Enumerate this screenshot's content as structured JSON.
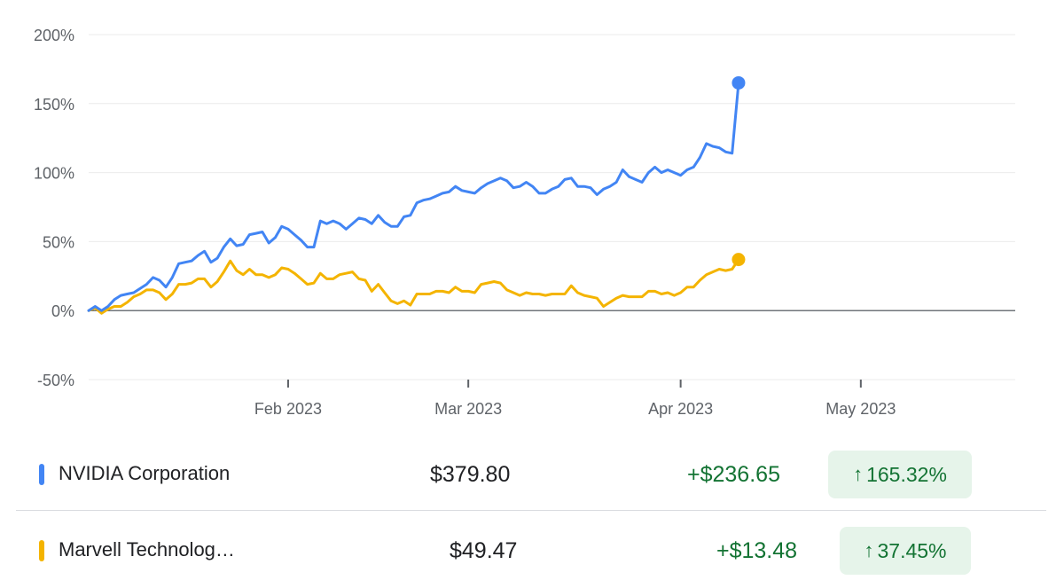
{
  "chart_data": {
    "type": "line",
    "x_start": "2023-01-01",
    "x_end": "2023-05-25",
    "y_ticks": [
      "200%",
      "150%",
      "100%",
      "50%",
      "0%",
      "-50%"
    ],
    "ylim": [
      -50,
      200
    ],
    "grid": true,
    "x_ticks": [
      {
        "label": "Feb 2023",
        "date": "2023-02-01"
      },
      {
        "label": "Mar 2023",
        "date": "2023-03-01"
      },
      {
        "label": "Apr 2023",
        "date": "2023-04-03"
      },
      {
        "label": "May 2023",
        "date": "2023-05-01"
      }
    ],
    "series": [
      {
        "name": "NVIDIA Corporation",
        "color": "#4285f4",
        "points": [
          [
            "2023-01-01",
            0
          ],
          [
            "2023-01-02",
            3
          ],
          [
            "2023-01-03",
            0
          ],
          [
            "2023-01-04",
            3
          ],
          [
            "2023-01-05",
            8
          ],
          [
            "2023-01-06",
            11
          ],
          [
            "2023-01-07",
            12
          ],
          [
            "2023-01-08",
            13
          ],
          [
            "2023-01-09",
            16
          ],
          [
            "2023-01-10",
            19
          ],
          [
            "2023-01-11",
            24
          ],
          [
            "2023-01-12",
            22
          ],
          [
            "2023-01-13",
            17
          ],
          [
            "2023-01-14",
            24
          ],
          [
            "2023-01-15",
            34
          ],
          [
            "2023-01-16",
            35
          ],
          [
            "2023-01-17",
            36
          ],
          [
            "2023-01-18",
            40
          ],
          [
            "2023-01-19",
            43
          ],
          [
            "2023-01-20",
            35
          ],
          [
            "2023-01-21",
            38
          ],
          [
            "2023-01-22",
            46
          ],
          [
            "2023-01-23",
            52
          ],
          [
            "2023-01-24",
            47
          ],
          [
            "2023-01-25",
            48
          ],
          [
            "2023-01-26",
            55
          ],
          [
            "2023-01-27",
            56
          ],
          [
            "2023-01-28",
            57
          ],
          [
            "2023-01-29",
            49
          ],
          [
            "2023-01-30",
            53
          ],
          [
            "2023-01-31",
            61
          ],
          [
            "2023-02-01",
            59
          ],
          [
            "2023-02-02",
            55
          ],
          [
            "2023-02-03",
            51
          ],
          [
            "2023-02-04",
            46
          ],
          [
            "2023-02-05",
            46
          ],
          [
            "2023-02-06",
            65
          ],
          [
            "2023-02-07",
            63
          ],
          [
            "2023-02-08",
            65
          ],
          [
            "2023-02-09",
            63
          ],
          [
            "2023-02-10",
            59
          ],
          [
            "2023-02-11",
            63
          ],
          [
            "2023-02-12",
            67
          ],
          [
            "2023-02-13",
            66
          ],
          [
            "2023-02-14",
            63
          ],
          [
            "2023-02-15",
            69
          ],
          [
            "2023-02-16",
            64
          ],
          [
            "2023-02-17",
            61
          ],
          [
            "2023-02-18",
            61
          ],
          [
            "2023-02-19",
            68
          ],
          [
            "2023-02-20",
            69
          ],
          [
            "2023-02-21",
            78
          ],
          [
            "2023-02-22",
            80
          ],
          [
            "2023-02-23",
            81
          ],
          [
            "2023-02-24",
            83
          ],
          [
            "2023-02-25",
            85
          ],
          [
            "2023-02-26",
            86
          ],
          [
            "2023-02-27",
            90
          ],
          [
            "2023-02-28",
            87
          ],
          [
            "2023-03-01",
            86
          ],
          [
            "2023-03-02",
            85
          ],
          [
            "2023-03-03",
            89
          ],
          [
            "2023-03-04",
            92
          ],
          [
            "2023-03-05",
            94
          ],
          [
            "2023-03-06",
            96
          ],
          [
            "2023-03-07",
            94
          ],
          [
            "2023-03-08",
            89
          ],
          [
            "2023-03-09",
            90
          ],
          [
            "2023-03-10",
            93
          ],
          [
            "2023-03-11",
            90
          ],
          [
            "2023-03-12",
            85
          ],
          [
            "2023-03-13",
            85
          ],
          [
            "2023-03-14",
            88
          ],
          [
            "2023-03-15",
            90
          ],
          [
            "2023-03-16",
            95
          ],
          [
            "2023-03-17",
            96
          ],
          [
            "2023-03-18",
            90
          ],
          [
            "2023-03-19",
            90
          ],
          [
            "2023-03-20",
            89
          ],
          [
            "2023-03-21",
            84
          ],
          [
            "2023-03-22",
            88
          ],
          [
            "2023-03-23",
            90
          ],
          [
            "2023-03-24",
            93
          ],
          [
            "2023-03-25",
            102
          ],
          [
            "2023-03-26",
            97
          ],
          [
            "2023-03-27",
            95
          ],
          [
            "2023-03-28",
            93
          ],
          [
            "2023-03-29",
            100
          ],
          [
            "2023-03-30",
            104
          ],
          [
            "2023-03-31",
            100
          ],
          [
            "2023-04-01",
            102
          ],
          [
            "2023-04-02",
            100
          ],
          [
            "2023-04-03",
            98
          ],
          [
            "2023-04-04",
            102
          ],
          [
            "2023-04-05",
            104
          ],
          [
            "2023-04-06",
            111
          ],
          [
            "2023-04-07",
            121
          ],
          [
            "2023-04-08",
            119
          ],
          [
            "2023-04-09",
            118
          ],
          [
            "2023-04-10",
            115
          ],
          [
            "2023-04-11",
            114
          ],
          [
            "2023-04-12",
            165
          ]
        ]
      },
      {
        "name": "Marvell Technology",
        "color": "#f4b400",
        "points": [
          [
            "2023-01-01",
            0
          ],
          [
            "2023-01-02",
            2
          ],
          [
            "2023-01-03",
            -2
          ],
          [
            "2023-01-04",
            1
          ],
          [
            "2023-01-05",
            3
          ],
          [
            "2023-01-06",
            3
          ],
          [
            "2023-01-07",
            6
          ],
          [
            "2023-01-08",
            10
          ],
          [
            "2023-01-09",
            12
          ],
          [
            "2023-01-10",
            15
          ],
          [
            "2023-01-11",
            15
          ],
          [
            "2023-01-12",
            13
          ],
          [
            "2023-01-13",
            8
          ],
          [
            "2023-01-14",
            12
          ],
          [
            "2023-01-15",
            19
          ],
          [
            "2023-01-16",
            19
          ],
          [
            "2023-01-17",
            20
          ],
          [
            "2023-01-18",
            23
          ],
          [
            "2023-01-19",
            23
          ],
          [
            "2023-01-20",
            17
          ],
          [
            "2023-01-21",
            21
          ],
          [
            "2023-01-22",
            28
          ],
          [
            "2023-01-23",
            36
          ],
          [
            "2023-01-24",
            29
          ],
          [
            "2023-01-25",
            26
          ],
          [
            "2023-01-26",
            30
          ],
          [
            "2023-01-27",
            26
          ],
          [
            "2023-01-28",
            26
          ],
          [
            "2023-01-29",
            24
          ],
          [
            "2023-01-30",
            26
          ],
          [
            "2023-01-31",
            31
          ],
          [
            "2023-02-01",
            30
          ],
          [
            "2023-02-02",
            27
          ],
          [
            "2023-02-03",
            23
          ],
          [
            "2023-02-04",
            19
          ],
          [
            "2023-02-05",
            20
          ],
          [
            "2023-02-06",
            27
          ],
          [
            "2023-02-07",
            23
          ],
          [
            "2023-02-08",
            23
          ],
          [
            "2023-02-09",
            26
          ],
          [
            "2023-02-10",
            27
          ],
          [
            "2023-02-11",
            28
          ],
          [
            "2023-02-12",
            23
          ],
          [
            "2023-02-13",
            22
          ],
          [
            "2023-02-14",
            14
          ],
          [
            "2023-02-15",
            19
          ],
          [
            "2023-02-16",
            13
          ],
          [
            "2023-02-17",
            7
          ],
          [
            "2023-02-18",
            5
          ],
          [
            "2023-02-19",
            7
          ],
          [
            "2023-02-20",
            4
          ],
          [
            "2023-02-21",
            12
          ],
          [
            "2023-02-22",
            12
          ],
          [
            "2023-02-23",
            12
          ],
          [
            "2023-02-24",
            14
          ],
          [
            "2023-02-25",
            14
          ],
          [
            "2023-02-26",
            13
          ],
          [
            "2023-02-27",
            17
          ],
          [
            "2023-02-28",
            14
          ],
          [
            "2023-03-01",
            14
          ],
          [
            "2023-03-02",
            13
          ],
          [
            "2023-03-03",
            19
          ],
          [
            "2023-03-04",
            20
          ],
          [
            "2023-03-05",
            21
          ],
          [
            "2023-03-06",
            20
          ],
          [
            "2023-03-07",
            15
          ],
          [
            "2023-03-08",
            13
          ],
          [
            "2023-03-09",
            11
          ],
          [
            "2023-03-10",
            13
          ],
          [
            "2023-03-11",
            12
          ],
          [
            "2023-03-12",
            12
          ],
          [
            "2023-03-13",
            11
          ],
          [
            "2023-03-14",
            12
          ],
          [
            "2023-03-15",
            12
          ],
          [
            "2023-03-16",
            12
          ],
          [
            "2023-03-17",
            18
          ],
          [
            "2023-03-18",
            13
          ],
          [
            "2023-03-19",
            11
          ],
          [
            "2023-03-20",
            10
          ],
          [
            "2023-03-21",
            9
          ],
          [
            "2023-03-22",
            3
          ],
          [
            "2023-03-23",
            6
          ],
          [
            "2023-03-24",
            9
          ],
          [
            "2023-03-25",
            11
          ],
          [
            "2023-03-26",
            10
          ],
          [
            "2023-03-27",
            10
          ],
          [
            "2023-03-28",
            10
          ],
          [
            "2023-03-29",
            14
          ],
          [
            "2023-03-30",
            14
          ],
          [
            "2023-03-31",
            12
          ],
          [
            "2023-04-01",
            13
          ],
          [
            "2023-04-02",
            11
          ],
          [
            "2023-04-03",
            13
          ],
          [
            "2023-04-04",
            17
          ],
          [
            "2023-04-05",
            17
          ],
          [
            "2023-04-06",
            22
          ],
          [
            "2023-04-07",
            26
          ],
          [
            "2023-04-08",
            28
          ],
          [
            "2023-04-09",
            30
          ],
          [
            "2023-04-10",
            29
          ],
          [
            "2023-04-11",
            30
          ],
          [
            "2023-04-12",
            37
          ]
        ]
      }
    ]
  },
  "legend": [
    {
      "name": "NVIDIA Corporation",
      "color": "#4285f4",
      "price": "$379.80",
      "change": "+$236.65",
      "percent": "165.32%"
    },
    {
      "name": "Marvell Technolog…",
      "color": "#f4b400",
      "price": "$49.47",
      "change": "+$13.48",
      "percent": "37.45%"
    }
  ]
}
